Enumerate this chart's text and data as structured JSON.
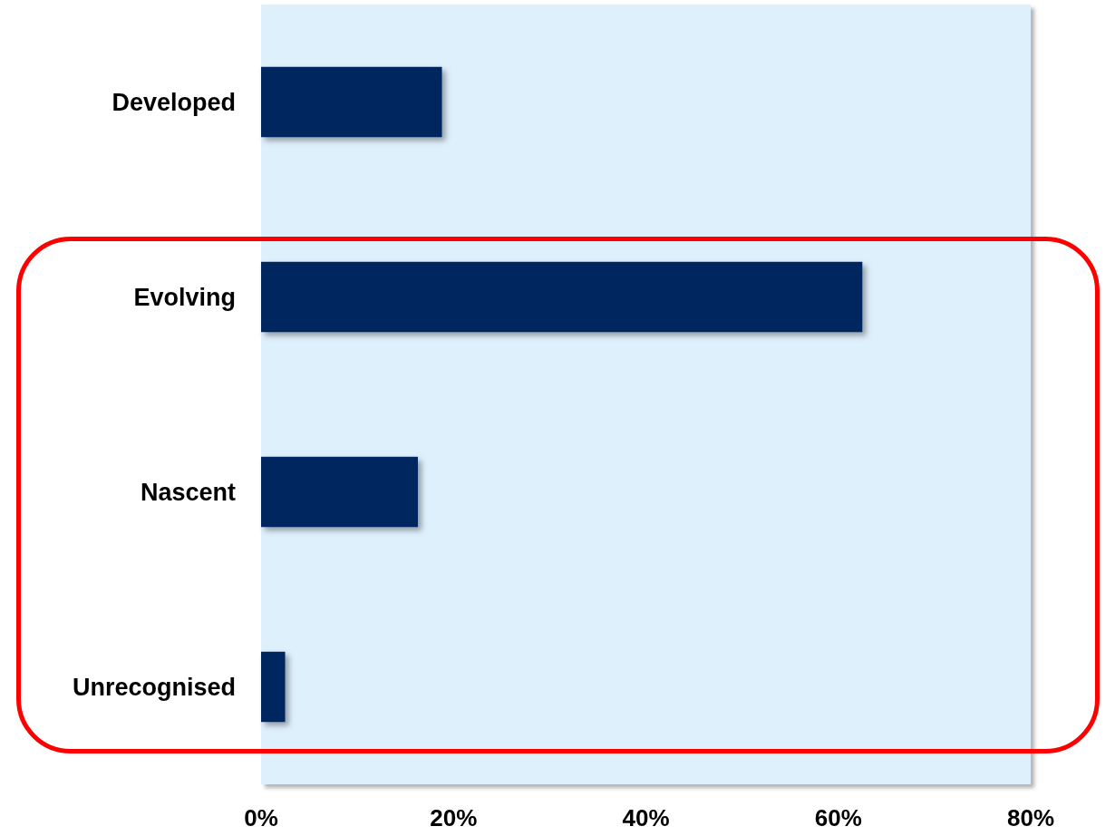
{
  "chart_data": {
    "type": "bar",
    "orientation": "horizontal",
    "categories": [
      "Developed",
      "Evolving",
      "Nascent",
      "Unrecognised"
    ],
    "values": [
      18.8,
      62.5,
      16.3,
      2.5
    ],
    "color": "#03265e",
    "xlim": [
      0,
      80
    ],
    "xticks": [
      {
        "value": 0,
        "label": "0%"
      },
      {
        "value": 20,
        "label": "20%"
      },
      {
        "value": 40,
        "label": "40%"
      },
      {
        "value": 60,
        "label": "60%"
      },
      {
        "value": 80,
        "label": "80%"
      }
    ],
    "grid": false
  }
}
